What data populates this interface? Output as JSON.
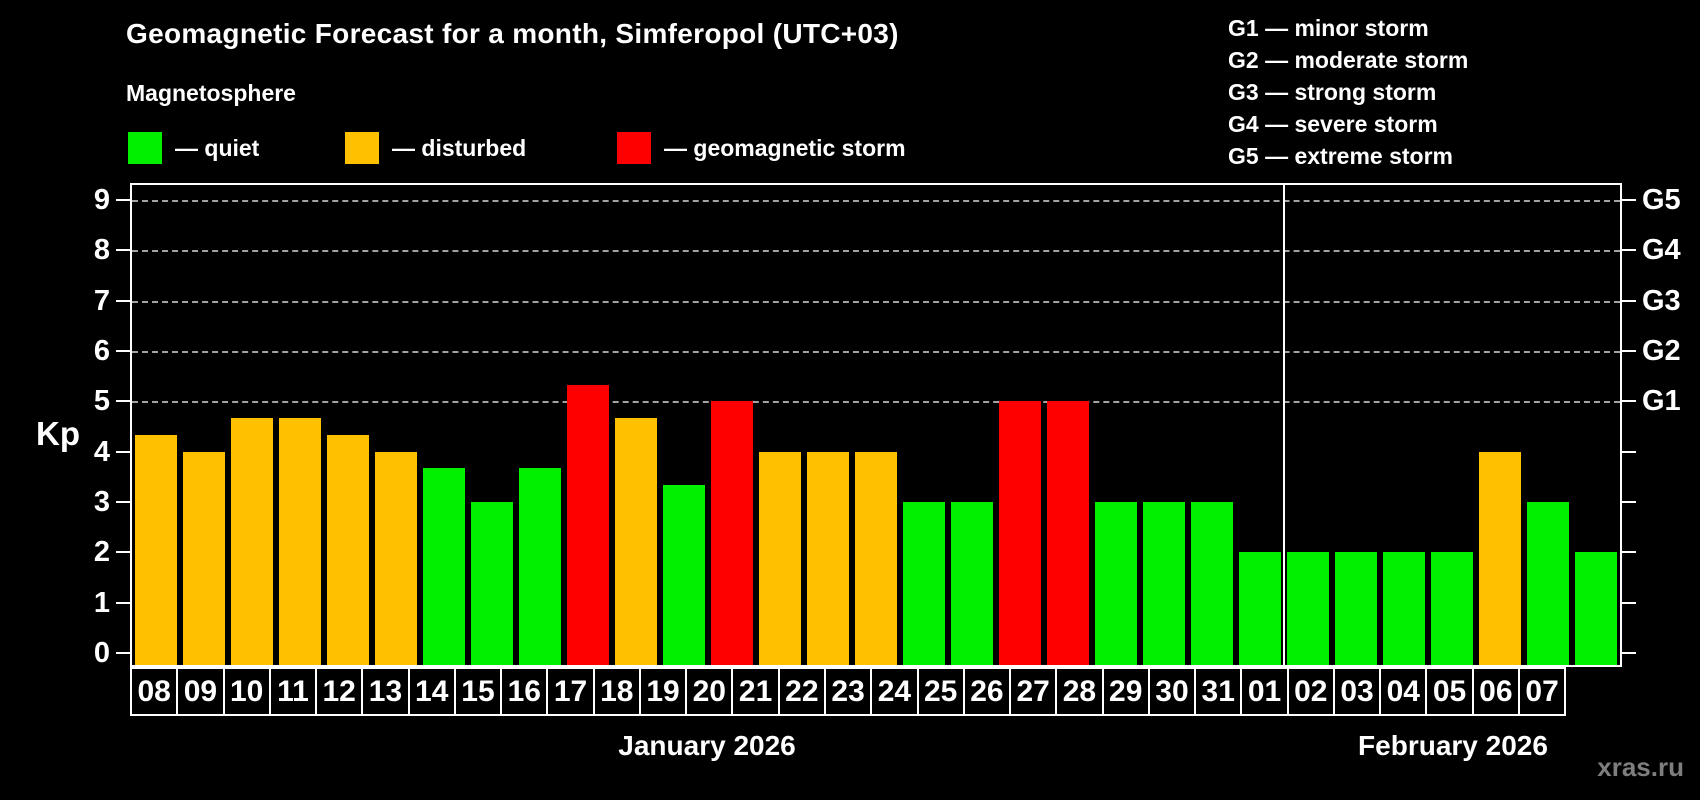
{
  "title": "Geomagnetic Forecast for a month, Simferopol (UTC+03)",
  "subtitle": "Magnetosphere",
  "legend": {
    "items": [
      {
        "name": "quiet",
        "label": "— quiet",
        "color": "#00F000"
      },
      {
        "name": "disturbed",
        "label": "— disturbed",
        "color": "#FFC000"
      },
      {
        "name": "storm",
        "label": "— geomagnetic storm",
        "color": "#FF0000"
      }
    ]
  },
  "storm_scale_legend": [
    "G1 — minor storm",
    "G2 — moderate storm",
    "G3 — strong storm",
    "G4 — severe storm",
    "G5 — extreme storm"
  ],
  "watermark": "xras.ru",
  "chart_data": {
    "type": "bar",
    "title": "Geomagnetic Forecast for a month, Simferopol (UTC+03)",
    "ylabel": "Kp",
    "ylim": [
      0,
      9
    ],
    "yticks": [
      0,
      1,
      2,
      3,
      4,
      5,
      6,
      7,
      8,
      9
    ],
    "gridlines_at": [
      5,
      6,
      7,
      8,
      9
    ],
    "grid": "dashed horizontal at storm levels only",
    "legend_position": "top",
    "right_axis_labels": [
      {
        "kp": 5,
        "label": "G1"
      },
      {
        "kp": 6,
        "label": "G2"
      },
      {
        "kp": 7,
        "label": "G3"
      },
      {
        "kp": 8,
        "label": "G4"
      },
      {
        "kp": 9,
        "label": "G5"
      }
    ],
    "months": [
      {
        "label": "January 2026",
        "days": 24
      },
      {
        "label": "February 2026",
        "days": 7
      }
    ],
    "categories": [
      "08",
      "09",
      "10",
      "11",
      "12",
      "13",
      "14",
      "15",
      "16",
      "17",
      "18",
      "19",
      "20",
      "21",
      "22",
      "23",
      "24",
      "25",
      "26",
      "27",
      "28",
      "29",
      "30",
      "31",
      "01",
      "02",
      "03",
      "04",
      "05",
      "06",
      "07"
    ],
    "values": [
      4.33,
      4.0,
      4.67,
      4.67,
      4.33,
      4.0,
      3.67,
      3.0,
      3.67,
      5.33,
      4.67,
      3.33,
      5.0,
      4.0,
      4.0,
      4.0,
      3.0,
      3.0,
      5.0,
      5.0,
      3.0,
      3.0,
      3.0,
      2.0,
      2.0,
      2.0,
      2.0,
      2.0,
      4.0,
      3.0,
      2.0
    ],
    "statuses": [
      "disturbed",
      "disturbed",
      "disturbed",
      "disturbed",
      "disturbed",
      "disturbed",
      "quiet",
      "quiet",
      "quiet",
      "storm",
      "disturbed",
      "quiet",
      "storm",
      "disturbed",
      "disturbed",
      "disturbed",
      "quiet",
      "quiet",
      "storm",
      "storm",
      "quiet",
      "quiet",
      "quiet",
      "quiet",
      "quiet",
      "quiet",
      "quiet",
      "quiet",
      "disturbed",
      "quiet",
      "quiet"
    ],
    "colors": {
      "quiet": "#00F000",
      "disturbed": "#FFC000",
      "storm": "#FF0000"
    }
  }
}
